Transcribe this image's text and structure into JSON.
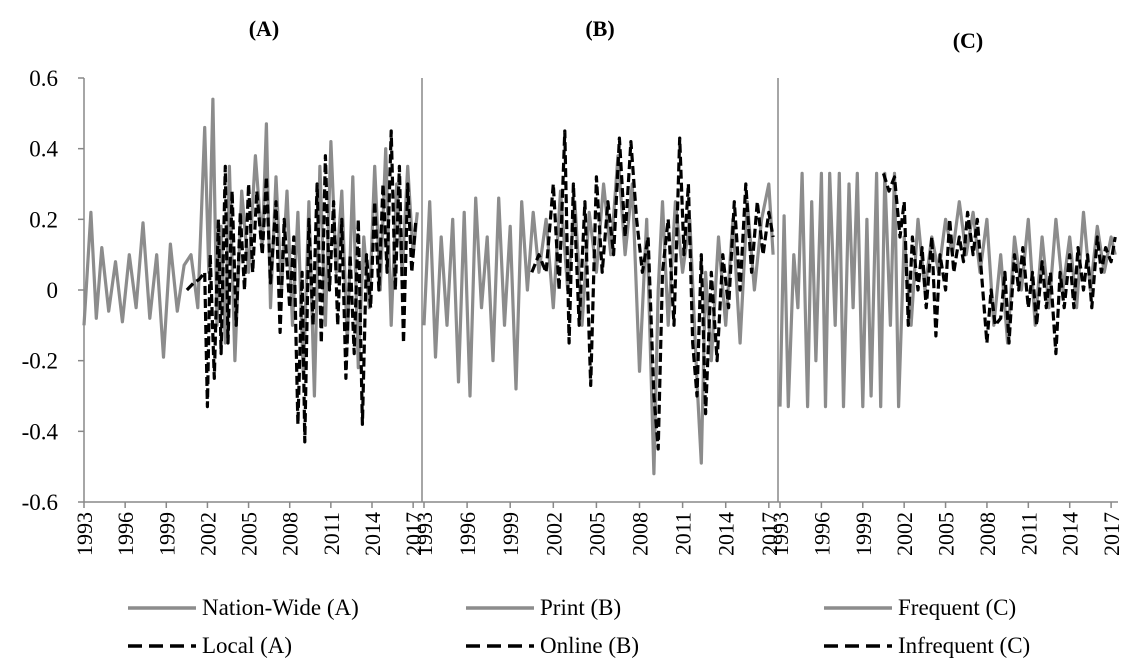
{
  "chart_data": {
    "type": "line",
    "y_axis": {
      "ylim": [
        -0.6,
        0.6
      ],
      "ticks": [
        "0.6",
        "0.4",
        "0.2",
        "0",
        "-0.2",
        "-0.4",
        "-0.6"
      ],
      "tick_values": [
        0.6,
        0.4,
        0.2,
        0,
        -0.2,
        -0.4,
        -0.6
      ]
    },
    "x_axis": {
      "xlim": [
        1993,
        2017.5
      ],
      "ticks": [
        "1993",
        "1996",
        "1999",
        "2002",
        "2005",
        "2008",
        "2011",
        "2014",
        "2017"
      ],
      "tick_values": [
        1993,
        1996,
        1999,
        2002,
        2005,
        2008,
        2011,
        2014,
        2017
      ]
    },
    "colors": {
      "solid": "#8c8c8c",
      "dashed": "#000000"
    },
    "panels": [
      {
        "title": "(A)",
        "series": [
          {
            "name": "Nation-Wide (A)",
            "style": "solid",
            "x": [
              1993.0,
              1993.5,
              1993.9,
              1994.3,
              1994.8,
              1995.3,
              1995.8,
              1996.3,
              1996.8,
              1997.3,
              1997.8,
              1998.3,
              1998.8,
              1999.3,
              1999.8,
              2000.3,
              2000.8,
              2001.3,
              2001.8,
              2002.1,
              2002.4,
              2002.7,
              2003.0,
              2003.3,
              2003.6,
              2004.0,
              2004.5,
              2005.0,
              2005.5,
              2006.0,
              2006.3,
              2006.6,
              2007.0,
              2007.4,
              2007.8,
              2008.2,
              2008.6,
              2009.0,
              2009.4,
              2009.8,
              2010.2,
              2010.6,
              2011.0,
              2011.4,
              2011.8,
              2012.2,
              2012.6,
              2013.0,
              2013.4,
              2013.8,
              2014.2,
              2014.6,
              2015.0,
              2015.4,
              2015.8,
              2016.2,
              2016.6,
              2017.0,
              2017.3
            ],
            "y": [
              -0.1,
              0.22,
              -0.08,
              0.12,
              -0.06,
              0.08,
              -0.09,
              0.1,
              -0.05,
              0.19,
              -0.08,
              0.1,
              -0.19,
              0.13,
              -0.06,
              0.07,
              0.1,
              -0.05,
              0.46,
              0.05,
              0.54,
              -0.1,
              0.18,
              -0.15,
              0.35,
              -0.2,
              0.28,
              0.05,
              0.38,
              0.12,
              0.47,
              -0.05,
              0.32,
              0.0,
              0.28,
              -0.1,
              0.22,
              -0.25,
              0.25,
              -0.3,
              0.35,
              -0.1,
              0.42,
              0.05,
              0.28,
              -0.15,
              0.32,
              -0.22,
              0.15,
              -0.05,
              0.35,
              0.0,
              0.4,
              -0.1,
              0.3,
              0.05,
              0.35,
              0.1,
              0.22
            ]
          },
          {
            "name": "Local (A)",
            "style": "dashed",
            "x": [
              2000.5,
              2001.0,
              2001.4,
              2001.8,
              2002.0,
              2002.2,
              2002.5,
              2002.8,
              2003.0,
              2003.3,
              2003.5,
              2003.8,
              2004.1,
              2004.4,
              2004.7,
              2005.0,
              2005.3,
              2005.6,
              2006.0,
              2006.3,
              2006.6,
              2007.0,
              2007.3,
              2007.6,
              2008.0,
              2008.3,
              2008.6,
              2008.9,
              2009.1,
              2009.4,
              2009.7,
              2010.0,
              2010.3,
              2010.6,
              2010.9,
              2011.2,
              2011.5,
              2011.8,
              2012.1,
              2012.4,
              2012.7,
              2013.0,
              2013.3,
              2013.6,
              2013.9,
              2014.2,
              2014.5,
              2014.8,
              2015.1,
              2015.4,
              2015.7,
              2016.0,
              2016.3,
              2016.6,
              2016.9,
              2017.2
            ],
            "y": [
              0.0,
              0.02,
              0.03,
              0.05,
              -0.33,
              0.1,
              -0.25,
              0.2,
              -0.18,
              0.35,
              -0.15,
              0.28,
              -0.1,
              0.22,
              0.0,
              0.3,
              0.05,
              0.28,
              0.1,
              0.32,
              0.02,
              0.25,
              -0.12,
              0.2,
              -0.05,
              0.15,
              -0.38,
              0.05,
              -0.43,
              0.2,
              -0.1,
              0.3,
              -0.15,
              0.38,
              0.0,
              0.25,
              -0.1,
              0.2,
              -0.25,
              0.1,
              -0.18,
              0.2,
              -0.38,
              0.1,
              -0.05,
              0.25,
              0.0,
              0.3,
              0.05,
              0.45,
              0.0,
              0.35,
              -0.15,
              0.3,
              0.05,
              0.2
            ]
          }
        ]
      },
      {
        "title": "(B)",
        "series": [
          {
            "name": "Print (B)",
            "style": "solid",
            "x": [
              1993.0,
              1993.4,
              1993.8,
              1994.2,
              1994.6,
              1995.0,
              1995.4,
              1995.8,
              1996.2,
              1996.6,
              1997.0,
              1997.4,
              1997.8,
              1998.2,
              1998.6,
              1999.0,
              1999.4,
              1999.8,
              2000.2,
              2000.6,
              2001.0,
              2001.5,
              2002.0,
              2002.5,
              2003.0,
              2003.5,
              2004.0,
              2004.5,
              2005.0,
              2005.5,
              2006.0,
              2006.5,
              2007.0,
              2007.5,
              2008.0,
              2008.5,
              2009.0,
              2009.3,
              2009.6,
              2010.0,
              2010.5,
              2011.0,
              2011.5,
              2012.0,
              2012.3,
              2012.6,
              2013.0,
              2013.5,
              2014.0,
              2014.5,
              2015.0,
              2015.5,
              2016.0,
              2016.5,
              2017.0,
              2017.3
            ],
            "y": [
              -0.1,
              0.25,
              -0.19,
              0.15,
              -0.1,
              0.2,
              -0.26,
              0.22,
              -0.3,
              0.26,
              -0.05,
              0.15,
              -0.2,
              0.26,
              -0.1,
              0.18,
              -0.28,
              0.25,
              0.0,
              0.22,
              0.05,
              0.2,
              -0.05,
              0.28,
              0.0,
              0.25,
              -0.1,
              0.22,
              0.05,
              0.3,
              0.1,
              0.38,
              0.1,
              0.3,
              -0.23,
              0.2,
              -0.52,
              0.0,
              0.25,
              -0.1,
              0.25,
              0.05,
              0.2,
              -0.26,
              -0.49,
              0.05,
              -0.2,
              0.15,
              -0.1,
              0.2,
              -0.15,
              0.25,
              0.0,
              0.2,
              0.3,
              0.1
            ]
          },
          {
            "name": "Online (B)",
            "style": "dashed",
            "x": [
              2000.5,
              2001.0,
              2001.5,
              2002.0,
              2002.4,
              2002.8,
              2003.1,
              2003.4,
              2003.8,
              2004.2,
              2004.6,
              2005.0,
              2005.4,
              2005.8,
              2006.2,
              2006.6,
              2007.0,
              2007.4,
              2007.8,
              2008.2,
              2008.6,
              2009.0,
              2009.3,
              2009.6,
              2010.0,
              2010.4,
              2010.8,
              2011.1,
              2011.4,
              2011.7,
              2012.0,
              2012.3,
              2012.6,
              2013.0,
              2013.4,
              2013.8,
              2014.2,
              2014.6,
              2015.0,
              2015.4,
              2015.8,
              2016.2,
              2016.6,
              2017.0,
              2017.3
            ],
            "y": [
              0.05,
              0.1,
              0.05,
              0.3,
              0.0,
              0.45,
              -0.15,
              0.3,
              -0.1,
              0.25,
              -0.27,
              0.32,
              0.05,
              0.25,
              0.1,
              0.43,
              0.15,
              0.42,
              0.2,
              0.05,
              0.15,
              -0.3,
              -0.45,
              0.05,
              0.2,
              -0.1,
              0.43,
              0.1,
              0.3,
              -0.15,
              -0.3,
              0.1,
              -0.35,
              0.05,
              -0.2,
              0.1,
              -0.05,
              0.25,
              0.0,
              0.3,
              0.05,
              0.25,
              0.1,
              0.22,
              0.15
            ]
          }
        ]
      },
      {
        "title": "(C)",
        "series": [
          {
            "name": "Frequent (C)",
            "style": "solid",
            "x": [
              1993.0,
              1993.3,
              1993.6,
              1994.0,
              1994.3,
              1994.6,
              1995.0,
              1995.3,
              1995.6,
              1996.0,
              1996.3,
              1996.6,
              1997.0,
              1997.3,
              1997.6,
              1998.0,
              1998.3,
              1998.6,
              1999.0,
              1999.3,
              1999.6,
              2000.0,
              2000.3,
              2000.6,
              2001.0,
              2001.3,
              2001.6,
              2002.0,
              2002.5,
              2003.0,
              2003.5,
              2004.0,
              2004.5,
              2005.0,
              2005.5,
              2006.0,
              2006.5,
              2007.0,
              2007.5,
              2008.0,
              2008.5,
              2009.0,
              2009.5,
              2010.0,
              2010.5,
              2011.0,
              2011.5,
              2012.0,
              2012.5,
              2013.0,
              2013.5,
              2014.0,
              2014.5,
              2015.0,
              2015.5,
              2016.0,
              2016.5,
              2017.0,
              2017.3
            ],
            "y": [
              -0.33,
              0.21,
              -0.33,
              0.1,
              -0.05,
              0.33,
              -0.33,
              0.25,
              -0.2,
              0.33,
              -0.33,
              0.33,
              -0.1,
              0.33,
              -0.33,
              0.3,
              -0.05,
              0.33,
              -0.33,
              0.2,
              -0.3,
              0.33,
              -0.33,
              0.33,
              -0.1,
              0.33,
              -0.33,
              0.15,
              -0.1,
              0.2,
              0.0,
              0.15,
              0.05,
              0.2,
              0.1,
              0.25,
              0.1,
              0.22,
              0.05,
              0.2,
              -0.1,
              0.1,
              -0.15,
              0.15,
              0.0,
              0.2,
              -0.1,
              0.15,
              -0.05,
              0.2,
              0.0,
              0.15,
              -0.05,
              0.22,
              0.0,
              0.18,
              0.05,
              0.15,
              0.1
            ]
          },
          {
            "name": "Infrequent (C)",
            "style": "dashed",
            "x": [
              2000.5,
              2000.9,
              2001.3,
              2001.7,
              2002.0,
              2002.3,
              2002.6,
              2003.0,
              2003.3,
              2003.6,
              2004.0,
              2004.3,
              2004.6,
              2005.0,
              2005.3,
              2005.6,
              2006.0,
              2006.3,
              2006.6,
              2007.0,
              2007.3,
              2007.6,
              2008.0,
              2008.3,
              2008.6,
              2009.0,
              2009.3,
              2009.6,
              2010.0,
              2010.3,
              2010.6,
              2011.0,
              2011.3,
              2011.6,
              2012.0,
              2012.3,
              2012.6,
              2013.0,
              2013.3,
              2013.6,
              2014.0,
              2014.3,
              2014.6,
              2015.0,
              2015.3,
              2015.6,
              2016.0,
              2016.3,
              2016.6,
              2017.0,
              2017.3
            ],
            "y": [
              0.33,
              0.28,
              0.32,
              0.15,
              0.25,
              -0.1,
              0.15,
              0.0,
              0.12,
              -0.05,
              0.15,
              -0.13,
              0.1,
              0.0,
              0.2,
              0.05,
              0.15,
              0.08,
              0.22,
              0.1,
              0.2,
              0.05,
              -0.15,
              0.0,
              -0.1,
              -0.08,
              0.05,
              -0.15,
              0.1,
              0.0,
              0.12,
              -0.05,
              0.05,
              -0.1,
              0.08,
              -0.05,
              0.05,
              -0.18,
              0.05,
              -0.05,
              0.1,
              -0.05,
              0.12,
              0.0,
              0.1,
              -0.05,
              0.15,
              0.05,
              0.12,
              0.08,
              0.15
            ]
          }
        ]
      }
    ]
  }
}
